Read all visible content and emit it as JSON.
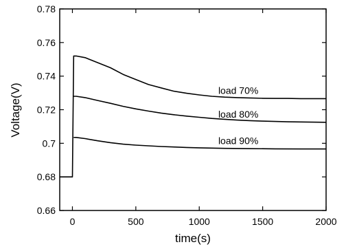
{
  "chart_data": {
    "type": "line",
    "title": "",
    "xlabel": "time(s)",
    "ylabel": "Voltage(V)",
    "xlim": [
      -100,
      2000
    ],
    "ylim": [
      0.66,
      0.78
    ],
    "xticks": [
      0,
      500,
      1000,
      1500,
      2000
    ],
    "yticks": [
      0.66,
      0.68,
      0.7,
      0.72,
      0.74,
      0.76,
      0.78
    ],
    "xtick_labels": [
      "0",
      "500",
      "1000",
      "1500",
      "2000"
    ],
    "ytick_labels": [
      "0.66",
      "0.68",
      "0.7",
      "0.72",
      "0.74",
      "0.76",
      "0.78"
    ],
    "grid": false,
    "legend": "none",
    "series": [
      {
        "name": "load 70%",
        "x": [
          -100,
          0,
          10,
          30,
          100,
          200,
          300,
          400,
          500,
          600,
          700,
          800,
          900,
          1000,
          1100,
          1200,
          1300,
          1400,
          1500,
          1600,
          1700,
          1800,
          1900,
          2000
        ],
        "y": [
          0.68,
          0.68,
          0.752,
          0.752,
          0.751,
          0.748,
          0.745,
          0.741,
          0.738,
          0.735,
          0.733,
          0.731,
          0.7298,
          0.7288,
          0.728,
          0.7275,
          0.7272,
          0.727,
          0.7268,
          0.7267,
          0.7267,
          0.7266,
          0.7266,
          0.7266
        ]
      },
      {
        "name": "load 80%",
        "x": [
          10,
          30,
          100,
          200,
          300,
          400,
          500,
          600,
          700,
          800,
          900,
          1000,
          1100,
          1200,
          1300,
          1400,
          1500,
          1600,
          1700,
          1800,
          1900,
          2000
        ],
        "y": [
          0.728,
          0.728,
          0.7272,
          0.7255,
          0.7238,
          0.722,
          0.7205,
          0.7192,
          0.718,
          0.717,
          0.7162,
          0.7155,
          0.7148,
          0.7143,
          0.7138,
          0.7135,
          0.7132,
          0.713,
          0.7128,
          0.7127,
          0.7126,
          0.7125
        ]
      },
      {
        "name": "load 90%",
        "x": [
          10,
          30,
          100,
          200,
          300,
          400,
          500,
          600,
          700,
          800,
          900,
          1000,
          1200,
          1400,
          1600,
          1800,
          2000
        ],
        "y": [
          0.7035,
          0.7035,
          0.7028,
          0.7015,
          0.7004,
          0.6995,
          0.6989,
          0.6985,
          0.6981,
          0.6978,
          0.6975,
          0.6973,
          0.697,
          0.6968,
          0.6967,
          0.6966,
          0.6966
        ]
      }
    ]
  }
}
